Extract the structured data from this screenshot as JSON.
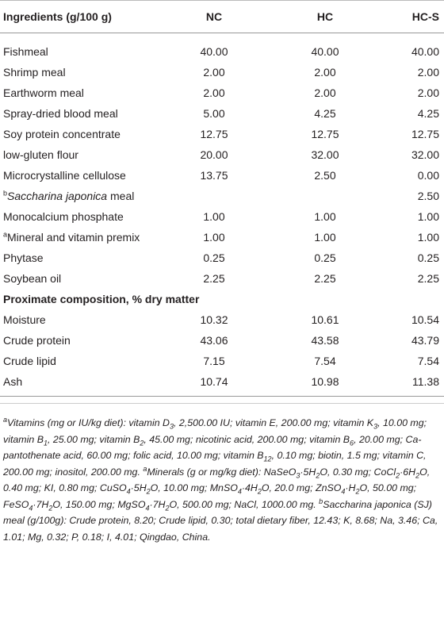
{
  "table": {
    "header": [
      "Ingredients (g/100 g)",
      "NC",
      "HC",
      "HC-S"
    ],
    "rows": [
      {
        "label": [
          "Fishmeal"
        ],
        "cells": [
          "40.00",
          "40.00",
          "40.00"
        ]
      },
      {
        "label": [
          "Shrimp meal"
        ],
        "cells": [
          "2.00",
          "2.00",
          "2.00"
        ]
      },
      {
        "label": [
          "Earthworm meal"
        ],
        "cells": [
          "2.00",
          "2.00",
          "2.00"
        ]
      },
      {
        "label": [
          "Spray-dried blood meal"
        ],
        "cells": [
          "5.00",
          "4.25",
          "4.25"
        ]
      },
      {
        "label": [
          "Soy protein concentrate"
        ],
        "cells": [
          "12.75",
          "12.75",
          "12.75"
        ]
      },
      {
        "label": [
          "low-gluten flour"
        ],
        "cells": [
          "20.00",
          "32.00",
          "32.00"
        ]
      },
      {
        "label": [
          "Microcrystalline cellulose"
        ],
        "cells": [
          "13.75",
          "2.50",
          "0.00"
        ]
      },
      {
        "label": [
          {
            "sup": "b"
          },
          {
            "italic": "Saccharina japonica"
          },
          " meal"
        ],
        "cells": [
          null,
          null,
          "2.50"
        ]
      },
      {
        "label": [
          "Monocalcium phosphate"
        ],
        "cells": [
          "1.00",
          "1.00",
          "1.00"
        ]
      },
      {
        "label": [
          {
            "sup": "a"
          },
          "Mineral and vitamin premix"
        ],
        "cells": [
          "1.00",
          "1.00",
          "1.00"
        ]
      },
      {
        "label": [
          "Phytase"
        ],
        "cells": [
          "0.25",
          "0.25",
          "0.25"
        ]
      },
      {
        "label": [
          "Soybean oil"
        ],
        "cells": [
          "2.25",
          "2.25",
          "2.25"
        ]
      },
      {
        "section": "Proximate composition, % dry matter"
      },
      {
        "label": [
          "Moisture"
        ],
        "cells": [
          "10.32",
          "10.61",
          "10.54"
        ]
      },
      {
        "label": [
          "Crude protein"
        ],
        "cells": [
          "43.06",
          "43.58",
          "43.79"
        ]
      },
      {
        "label": [
          "Crude lipid"
        ],
        "cells": [
          "7.15",
          "7.54",
          "7.54"
        ]
      },
      {
        "label": [
          "Ash"
        ],
        "cells": [
          "10.74",
          "10.98",
          "11.38"
        ]
      }
    ]
  },
  "footnote": [
    {
      "sup": "a"
    },
    "Vitamins (mg or IU/kg diet): vitamin D",
    {
      "sub": "3"
    },
    ", 2,500.00 IU; vitamin E, 200.00 mg; vitamin K",
    {
      "sub": "3"
    },
    ", 10.00 mg; vitamin B",
    {
      "sub": "1"
    },
    ", 25.00 mg; vitamin B",
    {
      "sub": "2"
    },
    ", 45.00 mg; nicotinic acid, 200.00 mg; vitamin B",
    {
      "sub": "6"
    },
    ", 20.00 mg; Ca-pantothenate acid, 60.00 mg; folic acid, 10.00 mg; vitamin B",
    {
      "sub": "12"
    },
    ", 0.10 mg; biotin, 1.5 mg; vitamin C, 200.00 mg; inositol, 200.00 mg. ",
    {
      "sup": "a"
    },
    "Minerals (g or mg/kg diet): NaSeO",
    {
      "sub": "3"
    },
    "·5H",
    {
      "sub": "2"
    },
    "O, 0.30 mg; CoCl",
    {
      "sub": "2"
    },
    "·6H",
    {
      "sub": "2"
    },
    "O, 0.40 mg; KI, 0.80 mg; CuSO",
    {
      "sub": "4"
    },
    "·5H",
    {
      "sub": "2"
    },
    "O, 10.00 mg; MnSO",
    {
      "sub": "4"
    },
    "·4H",
    {
      "sub": "2"
    },
    "O, 20.0 mg; ZnSO",
    {
      "sub": "4"
    },
    "·H",
    {
      "sub": "2"
    },
    "O, 50.00 mg; FeSO",
    {
      "sub": "4"
    },
    "·7H",
    {
      "sub": "2"
    },
    "O, 150.00 mg; MgSO",
    {
      "sub": "4"
    },
    "·7H",
    {
      "sub": "2"
    },
    "O, 500.00 mg; NaCl, 1000.00 mg. ",
    {
      "sup": "b"
    },
    "Saccharina japonica (SJ) meal (g/100g): Crude protein, 8.20; Crude lipid, 0.30; total dietary fiber, 12.43; K, 8.68; Na, 3.46; Ca, 1.01; Mg, 0.32; P, 0.18; I, 4.01; Qingdao, China."
  ]
}
